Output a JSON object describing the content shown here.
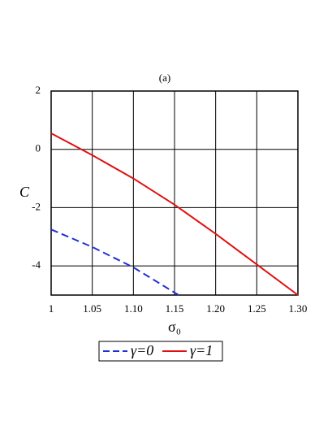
{
  "chart_data": {
    "type": "line",
    "title": "(a)",
    "x_label": "σ₀",
    "y_label": "C",
    "xlim": [
      1,
      1.3
    ],
    "ylim": [
      -5,
      2
    ],
    "xticks": [
      1,
      1.05,
      {
        "value": 1.1,
        "label": "1.10"
      },
      1.15,
      {
        "value": 1.2,
        "label": "1.20"
      },
      1.25,
      {
        "value": 1.3,
        "label": "1.30"
      }
    ],
    "yticks": [
      2,
      0,
      -2,
      -4
    ],
    "grid": true,
    "series": [
      {
        "name": "γ=0",
        "color": "#1f2fd6",
        "dash": true,
        "x": [
          1,
          1.05,
          1.1,
          1.155
        ],
        "values": [
          -2.75,
          -3.35,
          -4.05,
          -5
        ]
      },
      {
        "name": "γ=1",
        "color": "#e01010",
        "dash": false,
        "x": [
          1,
          1.05,
          1.1,
          1.15,
          1.2,
          1.25,
          1.3
        ],
        "values": [
          0.55,
          -0.2,
          -1.0,
          -1.9,
          -2.9,
          -3.95,
          -5.0
        ]
      }
    ]
  }
}
